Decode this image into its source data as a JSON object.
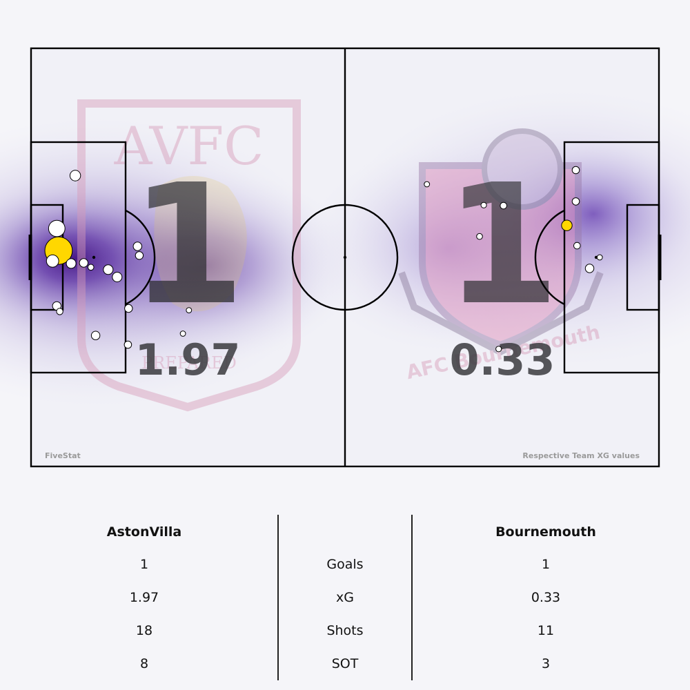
{
  "chart_data": {
    "type": "scatter",
    "title": "",
    "xlabel": "",
    "ylabel": "",
    "grid": false,
    "home": {
      "name": "AstonVilla",
      "goals": "1",
      "xg": "1.97",
      "shots": "18",
      "sot": "8",
      "crest_text": "AVFC",
      "crest_motto": "PREPARED",
      "crest_color": "#c98aa8",
      "heat_color": "#4b0d8c",
      "shots_list": [
        {
          "x": 7.4,
          "y": 47.3,
          "xg": 0.04,
          "goal": false
        },
        {
          "x": 4.3,
          "y": 38.7,
          "xg": 0.13,
          "goal": false
        },
        {
          "x": 4.6,
          "y": 35.1,
          "xg": 0.45,
          "goal": true
        },
        {
          "x": 3.6,
          "y": 33.4,
          "xg": 0.06,
          "goal": false
        },
        {
          "x": 6.7,
          "y": 33.0,
          "xg": 0.03,
          "goal": false
        },
        {
          "x": 8.8,
          "y": 33.1,
          "xg": 0.02,
          "goal": false
        },
        {
          "x": 10.0,
          "y": 32.4,
          "xg": 0.005,
          "goal": false
        },
        {
          "x": 12.9,
          "y": 32.0,
          "xg": 0.03,
          "goal": false
        },
        {
          "x": 14.4,
          "y": 30.8,
          "xg": 0.03,
          "goal": false
        },
        {
          "x": 17.8,
          "y": 35.8,
          "xg": 0.02,
          "goal": false
        },
        {
          "x": 18.1,
          "y": 34.3,
          "xg": 0.015,
          "goal": false
        },
        {
          "x": 4.3,
          "y": 26.1,
          "xg": 0.02,
          "goal": false
        },
        {
          "x": 4.8,
          "y": 25.2,
          "xg": 0.007,
          "goal": false
        },
        {
          "x": 10.8,
          "y": 21.3,
          "xg": 0.02,
          "goal": false
        },
        {
          "x": 16.3,
          "y": 25.7,
          "xg": 0.015,
          "goal": false
        },
        {
          "x": 16.2,
          "y": 19.8,
          "xg": 0.012,
          "goal": false
        },
        {
          "x": 26.4,
          "y": 25.4,
          "xg": 0.003,
          "goal": false
        },
        {
          "x": 25.4,
          "y": 21.6,
          "xg": 0.003,
          "goal": false
        }
      ]
    },
    "away": {
      "name": "Bournemouth",
      "goals": "1",
      "xg": "0.33",
      "shots": "11",
      "sot": "3",
      "crest_text": "AFC Bournemouth",
      "crest_color": "#c98aa8",
      "heat_color": "#6a3fb0",
      "shots_list": [
        {
          "x": 91.1,
          "y": 48.2,
          "xg": 0.012,
          "goal": false
        },
        {
          "x": 91.1,
          "y": 43.1,
          "xg": 0.012,
          "goal": false
        },
        {
          "x": 89.6,
          "y": 39.2,
          "xg": 0.04,
          "goal": true
        },
        {
          "x": 91.3,
          "y": 35.9,
          "xg": 0.008,
          "goal": false
        },
        {
          "x": 95.1,
          "y": 34.0,
          "xg": 0.003,
          "goal": false
        },
        {
          "x": 93.4,
          "y": 32.2,
          "xg": 0.02,
          "goal": false
        },
        {
          "x": 66.2,
          "y": 45.9,
          "xg": 0.003,
          "goal": false
        },
        {
          "x": 75.7,
          "y": 42.5,
          "xg": 0.004,
          "goal": false
        },
        {
          "x": 79.0,
          "y": 42.4,
          "xg": 0.008,
          "goal": false
        },
        {
          "x": 75.0,
          "y": 37.4,
          "xg": 0.005,
          "goal": false
        },
        {
          "x": 78.2,
          "y": 19.1,
          "xg": 0.004,
          "goal": false
        }
      ]
    },
    "credit": "FiveStat",
    "caption": "Respective Team XG values",
    "stat_labels": [
      "Goals",
      "xG",
      "Shots",
      "SOT"
    ]
  },
  "colors": {
    "line": "#000000",
    "goal": "#ffd700",
    "shot": "#ffffff",
    "pitch": "#f1f1f7",
    "big_number": "#3a3a3e"
  }
}
